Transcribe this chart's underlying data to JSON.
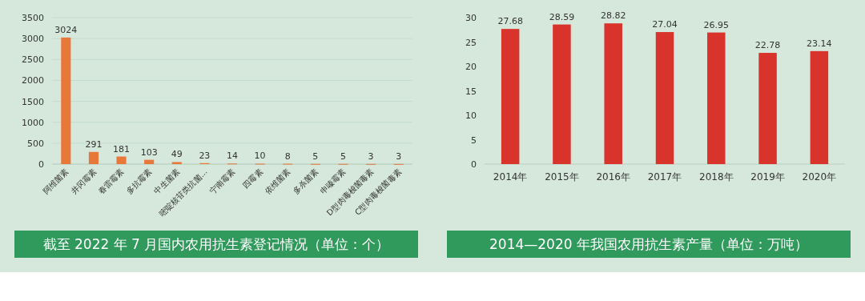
{
  "chart_data": [
    {
      "type": "bar",
      "title": "截至 2022 年 7 月国内农用抗生素登记情况（单位：个）",
      "categories": [
        "阿维菌素",
        "井冈霉素",
        "春雷霉素",
        "多抗霉素",
        "中生菌素",
        "嘧啶核苷类抗菌...",
        "宁南霉素",
        "四霉素",
        "依维菌素",
        "多杀菌素",
        "申嗪霉素",
        "D型肉毒梭菌毒素",
        "C型肉毒梭菌毒素"
      ],
      "values": [
        3024,
        291,
        181,
        103,
        49,
        23,
        14,
        10,
        8,
        5,
        5,
        3,
        3
      ],
      "color": "#e8773a",
      "ylim": [
        0,
        3500
      ],
      "yticks": [
        0,
        500,
        1000,
        1500,
        2000,
        2500,
        3000,
        3500
      ],
      "grid": "y",
      "data_labels": true
    },
    {
      "type": "bar",
      "title": "2014—2020 年我国农用抗生素产量（单位：万吨）",
      "categories": [
        "2014年",
        "2015年",
        "2016年",
        "2017年",
        "2018年",
        "2019年",
        "2020年"
      ],
      "values": [
        27.68,
        28.59,
        28.82,
        27.04,
        26.95,
        22.78,
        23.14
      ],
      "color": "#d9342b",
      "ylim": [
        0,
        30
      ],
      "yticks": [
        0,
        5,
        10,
        15,
        20,
        25,
        30
      ],
      "data_labels": true
    }
  ]
}
